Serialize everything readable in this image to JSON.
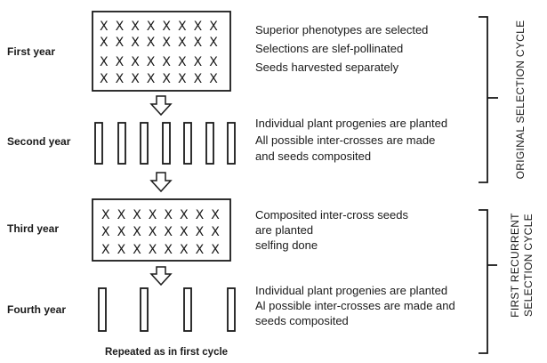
{
  "years": [
    {
      "label": "First year"
    },
    {
      "label": "Second year"
    },
    {
      "label": "Third year"
    },
    {
      "label": "Fourth year"
    }
  ],
  "descriptions": {
    "first": [
      "Superior phenotypes are selected",
      "Selections are slef-pollinated",
      "Seeds harvested separately"
    ],
    "second": [
      "Individual plant progenies are planted",
      "All possible inter-crosses are made",
      "and seeds composited"
    ],
    "third": [
      "Composited inter-cross seeds",
      "are planted",
      "selfing done"
    ],
    "fourth": [
      "Individual plant progenies are planted",
      "Al possible inter-crosses are made and",
      "seeds composited"
    ]
  },
  "cycles": {
    "original": "ORIGINAL SELECTION CYCLE",
    "recurrent_line1": "FIRST RECURRENT",
    "recurrent_line2": "SELECTION CYCLE"
  },
  "plant_symbol": "X",
  "footer": "Repeated as in first cycle"
}
